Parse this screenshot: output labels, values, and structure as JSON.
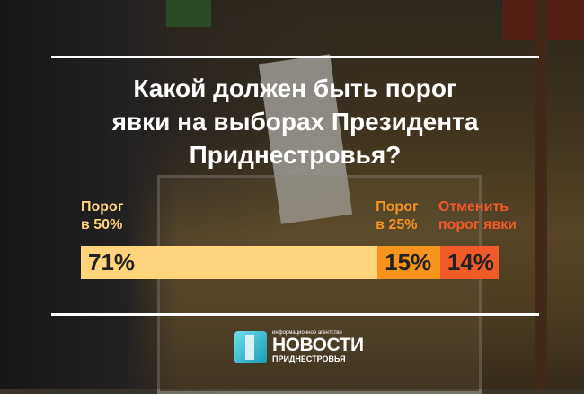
{
  "title_lines": [
    "Какой должен быть порог",
    "явки на выборах Президента",
    "Приднестровья?"
  ],
  "chart_data": {
    "type": "bar",
    "stacked": true,
    "orientation": "horizontal",
    "title": "Какой должен быть порог явки на выборах Президента Приднестровья?",
    "categories": [
      "Порог в 50%",
      "Порог в 25%",
      "Отменить порог явки"
    ],
    "values": [
      71,
      15,
      14
    ],
    "unit": "%",
    "data_labels": [
      "71%",
      "15%",
      "14%"
    ],
    "label_lines": [
      [
        "Порог",
        "в 50%"
      ],
      [
        "Порог",
        "в 25%"
      ],
      [
        "Отменить",
        "порог явки"
      ]
    ],
    "colors": [
      "#FFD47A",
      "#F7941D",
      "#F15A29"
    ],
    "label_colors": [
      "#FFD47A",
      "#F7941D",
      "#F15A29"
    ]
  },
  "logo": {
    "top": "информационное агентство",
    "name": "НОВОСТИ",
    "sub": "ПРИДНЕСТРОВЬЯ"
  }
}
